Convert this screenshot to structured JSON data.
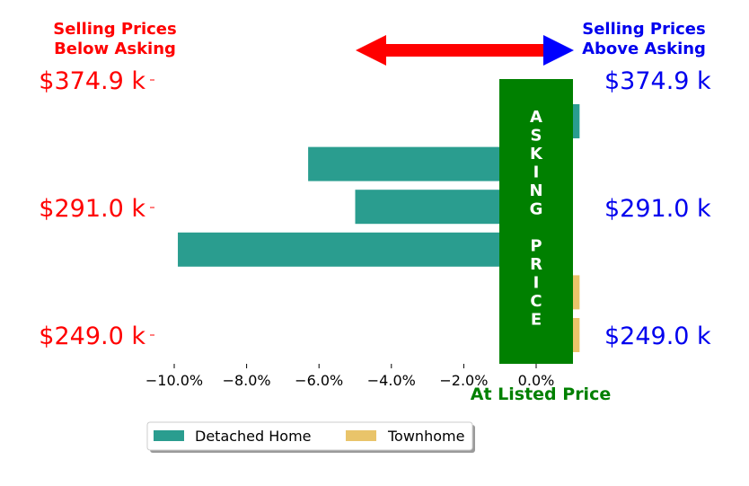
{
  "chart_data": {
    "type": "bar",
    "orientation": "horizontal",
    "title": "",
    "xlabel": "At Listed Price",
    "ylabel": "",
    "xlim": [
      -11,
      1.2
    ],
    "x_ticks": [
      -10,
      -8,
      -6,
      -4,
      -2,
      0
    ],
    "x_tick_labels": [
      "−10.0%",
      "−8.0%",
      "−6.0%",
      "−4.0%",
      "−2.0%",
      "0.0%"
    ],
    "y_tick_labels_left": [
      "$374.9 k",
      "$291.0 k",
      "$249.0 k"
    ],
    "y_tick_labels_right": [
      "$374.9 k",
      "$291.0 k",
      "$249.0 k"
    ],
    "bars": [
      {
        "series": "Detached Home",
        "value": 1.2
      },
      {
        "series": "Detached Home",
        "value": -6.3
      },
      {
        "series": "Detached Home",
        "value": -5.0
      },
      {
        "series": "Detached Home",
        "value": -9.9
      },
      {
        "series": "Townhome",
        "value": 1.2
      },
      {
        "series": "Townhome",
        "value": 1.2
      }
    ],
    "series": [
      {
        "name": "Detached Home",
        "color": "#2a9d8f"
      },
      {
        "name": "Townhome",
        "color": "#e9c46a"
      }
    ],
    "legend_position": "bottom-left",
    "grid": false
  },
  "annotations": {
    "below_asking": [
      "Selling Prices",
      "Below Asking"
    ],
    "above_asking": [
      "Selling Prices",
      "Above Asking"
    ],
    "asking_price_letters": [
      "A",
      "S",
      "K",
      "I",
      "N",
      "G",
      "",
      "P",
      "R",
      "I",
      "C",
      "E"
    ]
  },
  "colors": {
    "below": "#ff0000",
    "above": "#0000ee",
    "asking_box": "#008000",
    "listed_label": "#008000"
  }
}
